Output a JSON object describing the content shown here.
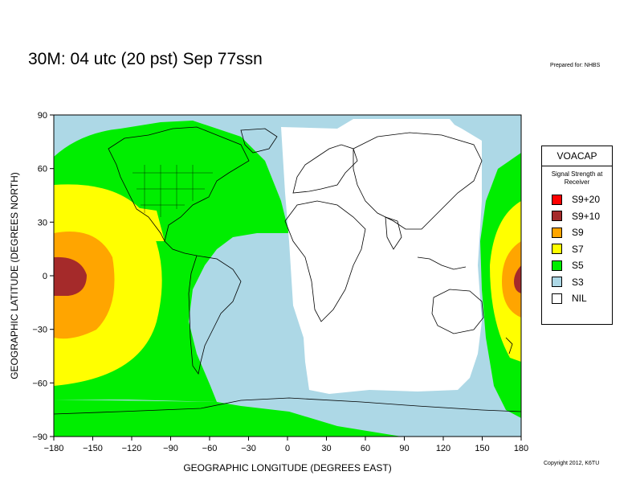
{
  "header": {
    "title": "30M:  04 utc (20 pst) Sep 77ssn",
    "prepared_for": "Prepared for: NHBS"
  },
  "footer": {
    "copyright": "Copyright 2012, K6TU"
  },
  "map": {
    "x_axis_title": "GEOGRAPHIC LONGITUDE (DEGREES EAST)",
    "y_axis_title": "GEOGRAPHIC LATITUDE (DEGREES NORTH)",
    "x_ticks": [
      "−180",
      "−150",
      "−120",
      "−90",
      "−60",
      "−30",
      "0",
      "30",
      "60",
      "90",
      "120",
      "150",
      "180"
    ],
    "y_ticks": [
      "90",
      "60",
      "30",
      "0",
      "−30",
      "−60",
      "−90"
    ],
    "colors": {
      "s3": "#add8e6",
      "s5": "#00ee00",
      "s7": "#ffff00",
      "s9": "#ffa500",
      "s9_10": "#a52a2a",
      "s9_20": "#ff0000",
      "nil": "#ffffff"
    }
  },
  "legend": {
    "title": "VOACAP",
    "subtitle": "Signal Strength at Receiver",
    "items": [
      {
        "label": "S9+20",
        "color": "#ff0000"
      },
      {
        "label": "S9+10",
        "color": "#a52a2a"
      },
      {
        "label": "S9",
        "color": "#ffa500"
      },
      {
        "label": "S7",
        "color": "#ffff00"
      },
      {
        "label": "S5",
        "color": "#00ee00"
      },
      {
        "label": "S3",
        "color": "#add8e6"
      },
      {
        "label": "NIL",
        "color": "#ffffff"
      }
    ]
  }
}
